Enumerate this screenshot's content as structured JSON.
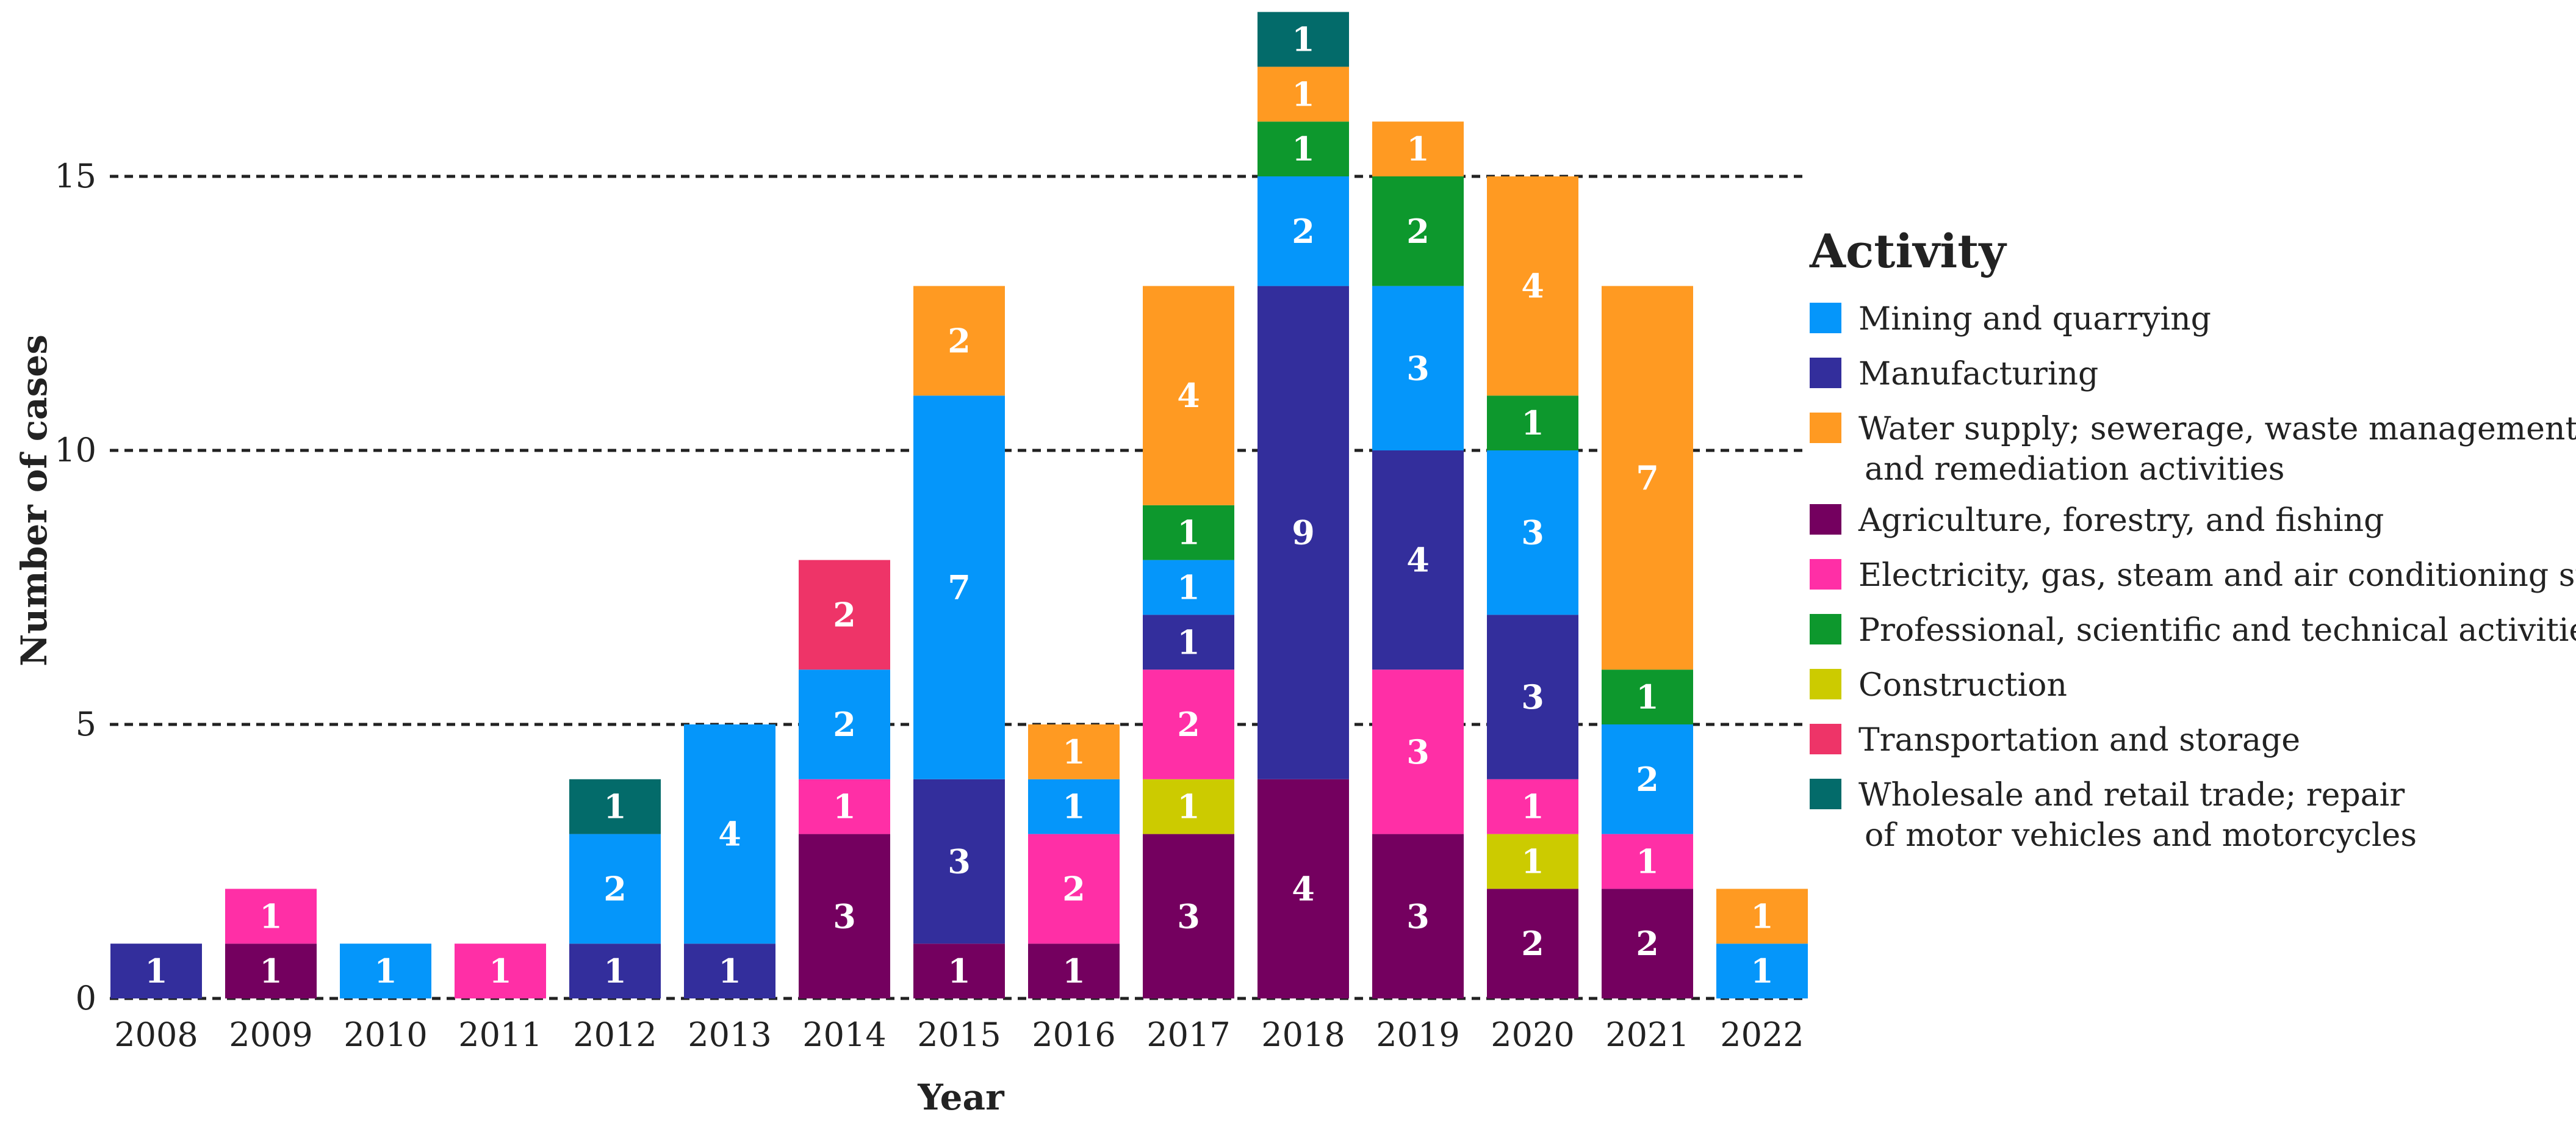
{
  "chart_data": {
    "type": "bar",
    "stacked": true,
    "xlabel": "Year",
    "ylabel": "Number of cases",
    "ylim": [
      0,
      18
    ],
    "yticks": [
      0,
      5,
      10,
      15
    ],
    "grid": "dashed horizontal at y ticks",
    "legend_position": "right",
    "legend_title": "Activity",
    "categories": [
      "2008",
      "2009",
      "2010",
      "2011",
      "2012",
      "2013",
      "2014",
      "2015",
      "2016",
      "2017",
      "2018",
      "2019",
      "2020",
      "2021",
      "2022"
    ],
    "series": [
      {
        "name": "Agriculture, forestry, and fishing",
        "color": "#74005f",
        "values": [
          0,
          1,
          0,
          0,
          0,
          0,
          3,
          1,
          1,
          3,
          4,
          3,
          2,
          2,
          0
        ]
      },
      {
        "name": "Construction",
        "color": "#cccb00",
        "values": [
          0,
          0,
          0,
          0,
          0,
          0,
          0,
          0,
          0,
          1,
          0,
          0,
          1,
          0,
          0
        ]
      },
      {
        "name": "Electricity, gas, steam and air conditioning supply",
        "color": "#ff2fa6",
        "values": [
          0,
          1,
          0,
          1,
          0,
          0,
          1,
          0,
          2,
          2,
          0,
          3,
          1,
          1,
          0
        ]
      },
      {
        "name": "Manufacturing",
        "color": "#332e9c",
        "values": [
          1,
          0,
          0,
          0,
          1,
          1,
          0,
          3,
          0,
          1,
          9,
          4,
          3,
          0,
          0
        ]
      },
      {
        "name": "Mining and quarrying",
        "color": "#0596fa",
        "values": [
          0,
          0,
          1,
          0,
          2,
          4,
          2,
          7,
          1,
          1,
          2,
          3,
          3,
          2,
          1
        ]
      },
      {
        "name": "Professional, scientific and technical activities",
        "color": "#0d982d",
        "values": [
          0,
          0,
          0,
          0,
          0,
          0,
          0,
          0,
          0,
          1,
          1,
          2,
          1,
          1,
          0
        ]
      },
      {
        "name": "Transportation and storage",
        "color": "#ee3468",
        "values": [
          0,
          0,
          0,
          0,
          0,
          0,
          2,
          0,
          0,
          0,
          0,
          0,
          0,
          0,
          0
        ]
      },
      {
        "name": "Water supply; sewerage, waste management, and remediation activities",
        "color": "#ff9a22",
        "values": [
          0,
          0,
          0,
          0,
          0,
          0,
          0,
          2,
          1,
          4,
          1,
          1,
          4,
          7,
          1
        ]
      },
      {
        "name": "Wholesale and retail trade; repair of motor vehicles and motorcycles",
        "color": "#036b6a",
        "values": [
          0,
          0,
          0,
          0,
          1,
          0,
          0,
          0,
          0,
          0,
          1,
          0,
          0,
          0,
          0
        ]
      }
    ],
    "legend": [
      {
        "lines": [
          "Mining and quarrying"
        ],
        "color": "#0596fa"
      },
      {
        "lines": [
          "Manufacturing"
        ],
        "color": "#332e9c"
      },
      {
        "lines": [
          "Water supply; sewerage, waste management,",
          "and remediation activities"
        ],
        "color": "#ff9a22"
      },
      {
        "lines": [
          "Agriculture, forestry, and fishing"
        ],
        "color": "#74005f"
      },
      {
        "lines": [
          "Electricity, gas, steam and air conditioning supply"
        ],
        "color": "#ff2fa6"
      },
      {
        "lines": [
          "Professional, scientific and technical activities"
        ],
        "color": "#0d982d"
      },
      {
        "lines": [
          "Construction"
        ],
        "color": "#cccb00"
      },
      {
        "lines": [
          "Transportation and storage"
        ],
        "color": "#ee3468"
      },
      {
        "lines": [
          "Wholesale and retail trade; repair",
          "of motor vehicles and motorcycles"
        ],
        "color": "#036b6a"
      }
    ]
  }
}
